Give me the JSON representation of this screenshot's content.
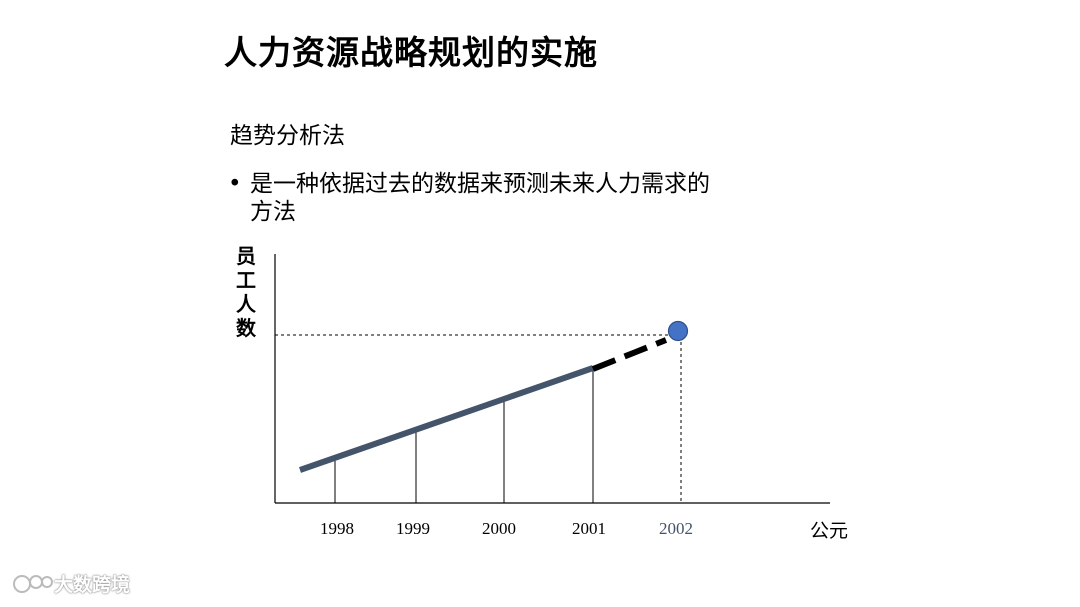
{
  "slide": {
    "title": "人力资源战略规划的实施",
    "subtitle": "趋势分析法",
    "bullet": "是一种依据过去的数据来预测未来人力需求的方法",
    "watermark": "大数跨境"
  },
  "chart_data": {
    "type": "line",
    "ylabel": "员工人数",
    "xlabel": "公元",
    "categories": [
      "1998",
      "1999",
      "2000",
      "2001",
      "2002"
    ],
    "actual": {
      "from": 1997.7,
      "to": 2001,
      "values_relative": [
        0.2,
        0.5,
        0.77
      ]
    },
    "forecast": {
      "from": 2001,
      "to": 2002,
      "style": "dashed"
    },
    "forecast_point": {
      "year": "2002",
      "color": "#4472c4"
    },
    "colors": {
      "actual": "#44546a",
      "forecast": "#000000",
      "highlight_label": "#44546a"
    },
    "grid": false
  }
}
